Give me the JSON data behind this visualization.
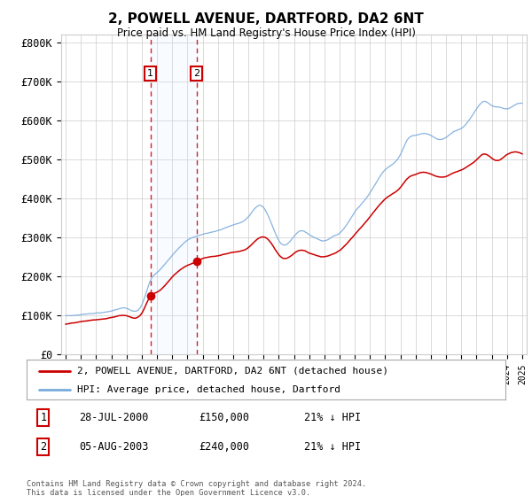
{
  "title": "2, POWELL AVENUE, DARTFORD, DA2 6NT",
  "subtitle": "Price paid vs. HM Land Registry's House Price Index (HPI)",
  "legend_line1": "2, POWELL AVENUE, DARTFORD, DA2 6NT (detached house)",
  "legend_line2": "HPI: Average price, detached house, Dartford",
  "footer": "Contains HM Land Registry data © Crown copyright and database right 2024.\nThis data is licensed under the Open Government Licence v3.0.",
  "transactions": [
    {
      "label": "1",
      "date": "28-JUL-2000",
      "price": 150000,
      "pct": "21%",
      "dir": "↓",
      "year": 2000.57
    },
    {
      "label": "2",
      "date": "05-AUG-2003",
      "price": 240000,
      "pct": "21%",
      "dir": "↓",
      "year": 2003.6
    }
  ],
  "ylim": [
    0,
    820000
  ],
  "yticks": [
    0,
    100000,
    200000,
    300000,
    400000,
    500000,
    600000,
    700000,
    800000
  ],
  "ytick_labels": [
    "£0",
    "£100K",
    "£200K",
    "£300K",
    "£400K",
    "£500K",
    "£600K",
    "£700K",
    "£800K"
  ],
  "hpi_color": "#7aabdc",
  "price_color": "#cc0000",
  "marker_color": "#cc0000",
  "bg_color": "#ffffff",
  "grid_color": "#cccccc",
  "transaction_shade": "#ddeeff",
  "transaction_box_color": "#cc0000",
  "hpi_keypoints": [
    [
      1995.0,
      100000
    ],
    [
      1996.0,
      103000
    ],
    [
      1997.0,
      108000
    ],
    [
      1998.0,
      113000
    ],
    [
      1999.0,
      120000
    ],
    [
      2000.0,
      128000
    ],
    [
      2000.57,
      190000
    ],
    [
      2001.0,
      210000
    ],
    [
      2002.0,
      255000
    ],
    [
      2003.0,
      295000
    ],
    [
      2003.6,
      305000
    ],
    [
      2004.0,
      310000
    ],
    [
      2005.0,
      320000
    ],
    [
      2006.0,
      335000
    ],
    [
      2007.0,
      355000
    ],
    [
      2007.8,
      385000
    ],
    [
      2008.5,
      340000
    ],
    [
      2009.0,
      295000
    ],
    [
      2009.5,
      285000
    ],
    [
      2010.0,
      305000
    ],
    [
      2010.5,
      320000
    ],
    [
      2011.0,
      310000
    ],
    [
      2011.5,
      300000
    ],
    [
      2012.0,
      295000
    ],
    [
      2012.5,
      305000
    ],
    [
      2013.0,
      315000
    ],
    [
      2014.0,
      370000
    ],
    [
      2015.0,
      420000
    ],
    [
      2016.0,
      480000
    ],
    [
      2017.0,
      520000
    ],
    [
      2017.5,
      560000
    ],
    [
      2018.0,
      570000
    ],
    [
      2018.5,
      575000
    ],
    [
      2019.0,
      570000
    ],
    [
      2019.5,
      560000
    ],
    [
      2020.0,
      565000
    ],
    [
      2020.5,
      580000
    ],
    [
      2021.0,
      590000
    ],
    [
      2021.5,
      610000
    ],
    [
      2022.0,
      640000
    ],
    [
      2022.5,
      660000
    ],
    [
      2023.0,
      650000
    ],
    [
      2023.5,
      645000
    ],
    [
      2024.0,
      640000
    ],
    [
      2024.5,
      648000
    ],
    [
      2025.0,
      652000
    ]
  ],
  "price_keypoints": [
    [
      1995.0,
      78000
    ],
    [
      1996.0,
      83000
    ],
    [
      1997.0,
      88000
    ],
    [
      1998.0,
      93000
    ],
    [
      1999.0,
      98000
    ],
    [
      2000.0,
      105000
    ],
    [
      2000.57,
      150000
    ],
    [
      2001.0,
      160000
    ],
    [
      2002.0,
      200000
    ],
    [
      2003.0,
      230000
    ],
    [
      2003.6,
      240000
    ],
    [
      2004.0,
      248000
    ],
    [
      2005.0,
      255000
    ],
    [
      2006.0,
      265000
    ],
    [
      2007.0,
      278000
    ],
    [
      2007.8,
      305000
    ],
    [
      2008.5,
      290000
    ],
    [
      2009.0,
      260000
    ],
    [
      2009.5,
      250000
    ],
    [
      2010.0,
      262000
    ],
    [
      2010.5,
      270000
    ],
    [
      2011.0,
      262000
    ],
    [
      2011.5,
      255000
    ],
    [
      2012.0,
      252000
    ],
    [
      2012.5,
      258000
    ],
    [
      2013.0,
      268000
    ],
    [
      2014.0,
      310000
    ],
    [
      2015.0,
      355000
    ],
    [
      2016.0,
      400000
    ],
    [
      2017.0,
      430000
    ],
    [
      2017.5,
      455000
    ],
    [
      2018.0,
      465000
    ],
    [
      2018.5,
      470000
    ],
    [
      2019.0,
      465000
    ],
    [
      2019.5,
      458000
    ],
    [
      2020.0,
      460000
    ],
    [
      2020.5,
      470000
    ],
    [
      2021.0,
      478000
    ],
    [
      2021.5,
      490000
    ],
    [
      2022.0,
      505000
    ],
    [
      2022.5,
      520000
    ],
    [
      2023.0,
      510000
    ],
    [
      2023.5,
      505000
    ],
    [
      2024.0,
      518000
    ],
    [
      2024.5,
      525000
    ],
    [
      2025.0,
      520000
    ]
  ]
}
